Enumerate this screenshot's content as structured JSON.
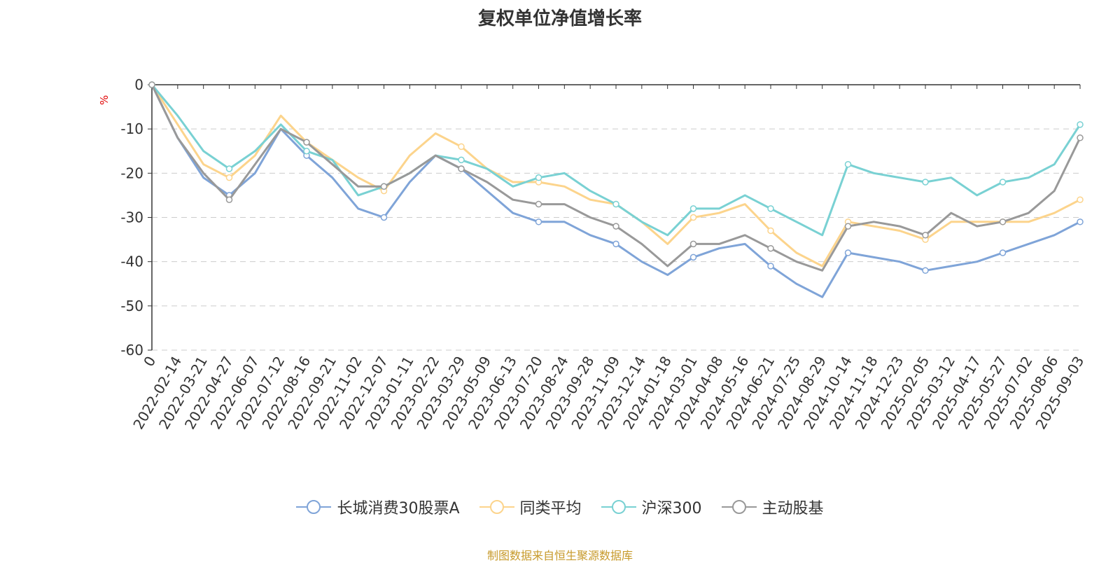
{
  "source": "制图数据来自恒生聚源数据库",
  "colors": {
    "series": [
      "#7fa4d8",
      "#fcd48c",
      "#79d1d3",
      "#999999"
    ],
    "axis": "#333333",
    "grid": "#cccccc",
    "ylabel": "#e00000",
    "source": "#c79a2b"
  },
  "chart_data": {
    "type": "line",
    "title": "复权单位净值增长率",
    "ylabel": "%",
    "xlabel": "",
    "ylim": [
      -60,
      0
    ],
    "yticks": [
      "0",
      "-10",
      "-20",
      "-30",
      "-40",
      "-50",
      "-60"
    ],
    "grid": "horizontal dashed",
    "legend_position": "bottom-center",
    "categories": [
      "0",
      "2022-02-14",
      "2022-03-21",
      "2022-04-27",
      "2022-06-07",
      "2022-07-12",
      "2022-08-16",
      "2022-09-21",
      "2022-11-02",
      "2022-12-07",
      "2023-01-11",
      "2023-02-22",
      "2023-03-29",
      "2023-05-09",
      "2023-06-13",
      "2023-07-20",
      "2023-08-24",
      "2023-09-28",
      "2023-11-09",
      "2023-12-14",
      "2024-01-18",
      "2024-03-01",
      "2024-04-08",
      "2024-05-16",
      "2024-06-21",
      "2024-07-25",
      "2024-08-29",
      "2024-10-14",
      "2024-11-18",
      "2024-12-23",
      "2025-02-05",
      "2025-03-12",
      "2025-04-17",
      "2025-05-27",
      "2025-07-02",
      "2025-08-06",
      "2025-09-03"
    ],
    "series": [
      {
        "name": "长城消费30股票A",
        "values": [
          0,
          -12,
          -21,
          -25,
          -20,
          -10,
          -16,
          -21,
          -28,
          -30,
          -22,
          -16,
          -19,
          -24,
          -29,
          -31,
          -31,
          -34,
          -36,
          -40,
          -43,
          -39,
          -37,
          -36,
          -41,
          -45,
          -48,
          -38,
          -39,
          -40,
          -42,
          -41,
          -40,
          -38,
          -36,
          -34,
          -31
        ]
      },
      {
        "name": "同类平均",
        "values": [
          0,
          -9,
          -18,
          -21,
          -16,
          -7,
          -13,
          -17,
          -21,
          -24,
          -16,
          -11,
          -14,
          -19,
          -22,
          -22,
          -23,
          -26,
          -27,
          -31,
          -36,
          -30,
          -29,
          -27,
          -33,
          -38,
          -41,
          -31,
          -32,
          -33,
          -35,
          -31,
          -31,
          -31,
          -31,
          -29,
          -26
        ]
      },
      {
        "name": "沪深300",
        "values": [
          0,
          -7,
          -15,
          -19,
          -15,
          -9,
          -15,
          -17,
          -25,
          -23,
          -20,
          -16,
          -17,
          -19,
          -23,
          -21,
          -20,
          -24,
          -27,
          -31,
          -34,
          -28,
          -28,
          -25,
          -28,
          -31,
          -34,
          -18,
          -20,
          -21,
          -22,
          -21,
          -25,
          -22,
          -21,
          -18,
          -9
        ]
      },
      {
        "name": "主动股基",
        "values": [
          0,
          -12,
          -20,
          -26,
          -18,
          -10,
          -13,
          -18,
          -23,
          -23,
          -20,
          -16,
          -19,
          -22,
          -26,
          -27,
          -27,
          -30,
          -32,
          -36,
          -41,
          -36,
          -36,
          -34,
          -37,
          -40,
          -42,
          -32,
          -31,
          -32,
          -34,
          -29,
          -32,
          -31,
          -29,
          -24,
          -12
        ]
      }
    ]
  }
}
